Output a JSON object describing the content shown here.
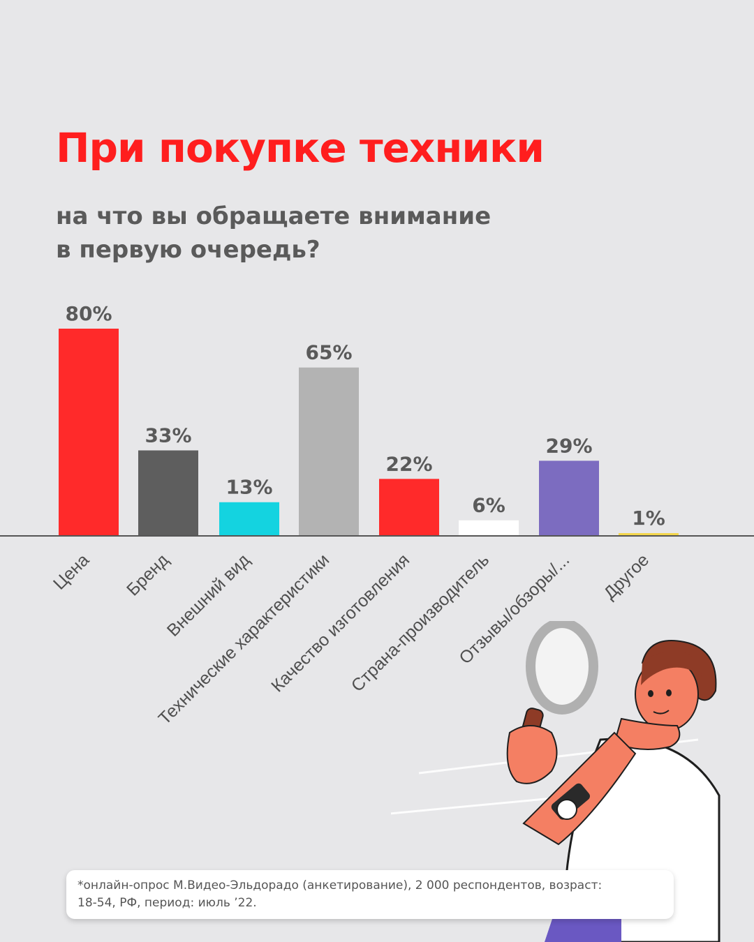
{
  "title": "При покупке техники",
  "subtitle_lines": [
    "на что вы обращаете внимание",
    "в первую очередь?"
  ],
  "footnote": {
    "line1": "*онлайн-опрос М.Видео-Эльдорадо (анкетирование), 2 000 респондентов, возраст:",
    "line2": "18-54, РФ, период: июль ’22."
  },
  "colors": {
    "title": "#ff1e1e",
    "text": "#5a5a5a",
    "background": "#e7e7e9"
  },
  "chart_data": {
    "type": "bar",
    "title": "",
    "xlabel": "",
    "ylabel": "",
    "unit": "%",
    "ylim": [
      0,
      80
    ],
    "grid": false,
    "categories": [
      "Цена",
      "Бренд",
      "Внешний вид",
      "Технические характеристики",
      "Качество изготовления",
      "Страна-производитель",
      "Отзывы/обзоры/...",
      "Другое"
    ],
    "values": [
      80,
      33,
      13,
      65,
      22,
      6,
      29,
      1
    ],
    "labels": [
      "80%",
      "33%",
      "13%",
      "65%",
      "22%",
      "6%",
      "29%",
      "1%"
    ],
    "bar_colors": [
      "#ff2a2a",
      "#5e5e5e",
      "#14d3e0",
      "#b3b3b3",
      "#ff2a2a",
      "#ffffff",
      "#7c6cc0",
      "#f3d64c"
    ]
  },
  "illustration": {
    "icon": "person-with-magnifying-glass-icon"
  }
}
